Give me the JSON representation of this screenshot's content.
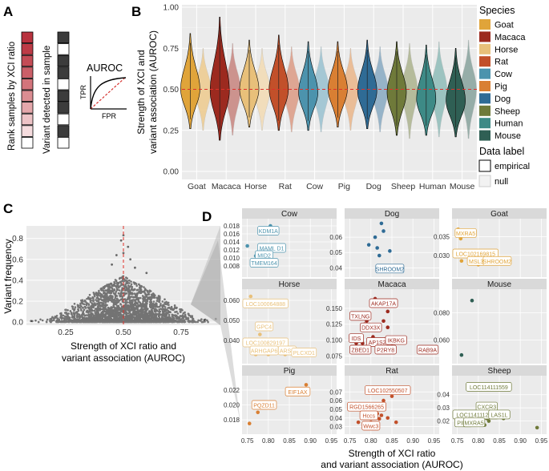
{
  "panels": {
    "a": "A",
    "b": "B",
    "c": "C",
    "d": "D"
  },
  "panel_a": {
    "rank_label": "Rank samples by XCI ratio",
    "variant_label": "Variant detected in sample",
    "auroc_title": "AUROC",
    "tpr": "TPR",
    "fpr": "FPR",
    "rank_colors": [
      "#b8323e",
      "#bd3b46",
      "#c44c56",
      "#cb5f68",
      "#d3747b",
      "#db8d92",
      "#e4a7ab",
      "#edc3c6",
      "#f5dcde",
      "#ffffff"
    ],
    "variant_colors": [
      "#3c3c3c",
      "#ffffff",
      "#3c3c3c",
      "#3c3c3c",
      "#ffffff",
      "#3c3c3c",
      "#3c3c3c",
      "#ffffff",
      "#3c3c3c",
      "#ffffff"
    ]
  },
  "legend": {
    "species_title": "Species",
    "species": [
      {
        "name": "Goat",
        "color": "#e0a43a"
      },
      {
        "name": "Macaca",
        "color": "#9c2a1f"
      },
      {
        "name": "Horse",
        "color": "#e8c07a"
      },
      {
        "name": "Rat",
        "color": "#c2502a"
      },
      {
        "name": "Cow",
        "color": "#4c93ad"
      },
      {
        "name": "Pig",
        "color": "#d97f33"
      },
      {
        "name": "Dog",
        "color": "#2f6b95"
      },
      {
        "name": "Sheep",
        "color": "#6f7a3a"
      },
      {
        "name": "Human",
        "color": "#3d8a86"
      },
      {
        "name": "Mouse",
        "color": "#2f5f54"
      }
    ],
    "data_label_title": "Data label",
    "data_labels": [
      "empirical",
      "null"
    ]
  },
  "chart_data": [
    {
      "type": "violin",
      "panel": "B",
      "ylabel": "Strength of XCI and\nvariant association (AUROC)",
      "ylim": [
        0,
        1
      ],
      "yticks": [
        "0.00",
        "0.25",
        "0.50",
        "0.75",
        "1.00"
      ],
      "categories": [
        "Goat",
        "Macaca",
        "Horse",
        "Rat",
        "Cow",
        "Pig",
        "Dog",
        "Sheep",
        "Human",
        "Mouse"
      ],
      "reference_line": 0.5,
      "series": [
        {
          "name": "empirical",
          "median": [
            0.5,
            0.49,
            0.5,
            0.5,
            0.48,
            0.5,
            0.49,
            0.48,
            0.44,
            0.43
          ],
          "min": [
            0.26,
            0.19,
            0.27,
            0.25,
            0.25,
            0.27,
            0.26,
            0.22,
            0.22,
            0.21
          ],
          "max": [
            0.84,
            0.94,
            0.8,
            0.83,
            0.79,
            0.79,
            0.8,
            0.79,
            0.77,
            0.75
          ]
        },
        {
          "name": "null",
          "median": [
            0.5,
            0.5,
            0.5,
            0.5,
            0.5,
            0.5,
            0.5,
            0.5,
            0.5,
            0.5
          ],
          "min": [
            0.25,
            0.22,
            0.25,
            0.24,
            0.24,
            0.25,
            0.24,
            0.2,
            0.21,
            0.2
          ],
          "max": [
            0.75,
            0.78,
            0.75,
            0.76,
            0.76,
            0.75,
            0.76,
            0.78,
            0.79,
            0.8
          ]
        }
      ]
    },
    {
      "type": "scatter",
      "panel": "C",
      "xlabel": "Strength of XCI ratio and\nvariant association (AUROC)",
      "ylabel": "Variant frequency",
      "xticks": [
        "0.25",
        "0.50",
        "0.75"
      ],
      "yticks": [
        "0.0",
        "0.2",
        "0.4",
        "0.6",
        "0.8"
      ],
      "xlim": [
        0.08,
        0.92
      ],
      "ylim": [
        -0.03,
        0.92
      ],
      "reference_line_x": 0.5
    },
    {
      "type": "scatter",
      "panel": "D",
      "xlabel": "Strength of XCI ratio\nand variant association (AUROC)",
      "xticks": [
        "0.75",
        "0.80",
        "0.85",
        "0.90",
        "0.95"
      ],
      "xlim": [
        0.745,
        0.955
      ],
      "facets": [
        {
          "name": "Cow",
          "color": "#4c93ad",
          "ylim": [
            0.006,
            0.019
          ],
          "yticks": [
            "0.008",
            "0.010",
            "0.012",
            "0.014",
            "0.016",
            "0.018"
          ],
          "points": [
            [
              0.75,
              0.013
            ],
            [
              0.765,
              0.0085
            ],
            [
              0.77,
              0.0105
            ],
            [
              0.77,
              0.0095
            ],
            [
              0.78,
              0.0085
            ],
            [
              0.785,
              0.0115
            ],
            [
              0.79,
              0.0125
            ],
            [
              0.805,
              0.018
            ]
          ],
          "labels": [
            {
              "text": "KDM1A",
              "x": 0.8,
              "y": 0.0168
            },
            {
              "text": "MAML D1",
              "x": 0.808,
              "y": 0.0125
            },
            {
              "text": "MID2",
              "x": 0.79,
              "y": 0.0107
            },
            {
              "text": "TMEM164",
              "x": 0.79,
              "y": 0.0088
            }
          ]
        },
        {
          "name": "Dog",
          "color": "#2f6b95",
          "ylim": [
            0.036,
            0.07
          ],
          "yticks": [
            "0.04",
            "0.05",
            "0.06"
          ],
          "points": [
            [
              0.795,
              0.055
            ],
            [
              0.81,
              0.06
            ],
            [
              0.815,
              0.053
            ],
            [
              0.82,
              0.048
            ],
            [
              0.825,
              0.069
            ],
            [
              0.83,
              0.064
            ],
            [
              0.845,
              0.051
            ],
            [
              0.85,
              0.038
            ]
          ],
          "labels": [
            {
              "text": "SHROOM2",
              "x": 0.845,
              "y": 0.0395
            }
          ]
        },
        {
          "name": "Goat",
          "color": "#e0a43a",
          "ylim": [
            0.025,
            0.039
          ],
          "yticks": [
            "0.030",
            "0.035"
          ],
          "points": [
            [
              0.752,
              0.037
            ],
            [
              0.758,
              0.0345
            ],
            [
              0.76,
              0.0285
            ],
            [
              0.8,
              0.0275
            ],
            [
              0.82,
              0.029
            ],
            [
              0.84,
              0.029
            ],
            [
              0.8,
              0.0295
            ]
          ],
          "labels": [
            {
              "text": "MXRA5",
              "x": 0.77,
              "y": 0.036
            },
            {
              "text": "LOC102169815",
              "x": 0.79,
              "y": 0.0305
            },
            {
              "text": "MSL3",
              "x": 0.795,
              "y": 0.0285
            },
            {
              "text": "SHROOM2",
              "x": 0.845,
              "y": 0.0285
            }
          ]
        },
        {
          "name": "Horse",
          "color": "#e8c07a",
          "ylim": [
            0.03,
            0.064
          ],
          "yticks": [
            "0.040",
            "0.050",
            "0.060"
          ],
          "points": [
            [
              0.758,
              0.062
            ],
            [
              0.765,
              0.038
            ],
            [
              0.77,
              0.033
            ],
            [
              0.775,
              0.036
            ],
            [
              0.78,
              0.043
            ],
            [
              0.8,
              0.033
            ],
            [
              0.82,
              0.034
            ],
            [
              0.84,
              0.033
            ],
            [
              0.85,
              0.035
            ],
            [
              0.86,
              0.034
            ]
          ],
          "labels": [
            {
              "text": "LOC100064888",
              "x": 0.79,
              "y": 0.0585
            },
            {
              "text": "GPC4",
              "x": 0.79,
              "y": 0.047
            },
            {
              "text": "LOC100829197",
              "x": 0.79,
              "y": 0.039
            },
            {
              "text": "ARHGAP6",
              "x": 0.79,
              "y": 0.035
            },
            {
              "text": "ARSE",
              "x": 0.845,
              "y": 0.035
            },
            {
              "text": "PLCXD1",
              "x": 0.885,
              "y": 0.034
            }
          ]
        },
        {
          "name": "Macaca",
          "color": "#9c2a1f",
          "ylim": [
            0.068,
            0.175
          ],
          "yticks": [
            "0.075",
            "0.100",
            "0.125",
            "0.150"
          ],
          "points": [
            [
              0.76,
              0.1
            ],
            [
              0.765,
              0.095
            ],
            [
              0.77,
              0.1
            ],
            [
              0.78,
              0.095
            ],
            [
              0.785,
              0.125
            ],
            [
              0.79,
              0.13
            ],
            [
              0.8,
              0.1
            ],
            [
              0.805,
              0.105
            ],
            [
              0.81,
              0.165
            ],
            [
              0.82,
              0.1
            ],
            [
              0.83,
              0.13
            ],
            [
              0.84,
              0.12
            ],
            [
              0.84,
              0.145
            ],
            [
              0.85,
              0.09
            ],
            [
              0.95,
              0.083
            ]
          ],
          "labels": [
            {
              "text": "AKAP17A",
              "x": 0.83,
              "y": 0.158
            },
            {
              "text": "TXLNG",
              "x": 0.775,
              "y": 0.138
            },
            {
              "text": "DDX3X",
              "x": 0.8,
              "y": 0.12
            },
            {
              "text": "IDS",
              "x": 0.765,
              "y": 0.103
            },
            {
              "text": "AP1S2",
              "x": 0.815,
              "y": 0.097
            },
            {
              "text": "IKBKG",
              "x": 0.86,
              "y": 0.1
            },
            {
              "text": "ZBED1",
              "x": 0.775,
              "y": 0.085
            },
            {
              "text": "P2RY8",
              "x": 0.835,
              "y": 0.085
            },
            {
              "text": "RAB9A",
              "x": 0.935,
              "y": 0.085
            }
          ]
        },
        {
          "name": "Mouse",
          "color": "#2f5f54",
          "ylim": [
            0.045,
            0.095
          ],
          "yticks": [
            "0.060",
            "0.080"
          ],
          "points": [
            [
              0.76,
              0.049
            ],
            [
              0.785,
              0.089
            ]
          ],
          "labels": []
        },
        {
          "name": "Pig",
          "color": "#d97f33",
          "ylim": [
            0.0165,
            0.0235
          ],
          "yticks": [
            "0.018",
            "0.020",
            "0.022"
          ],
          "points": [
            [
              0.755,
              0.0175
            ],
            [
              0.775,
              0.019
            ],
            [
              0.89,
              0.0227
            ]
          ],
          "labels": [
            {
              "text": "EIF1AX",
              "x": 0.87,
              "y": 0.0218
            },
            {
              "text": "PQZD11",
              "x": 0.79,
              "y": 0.02
            }
          ]
        },
        {
          "name": "Rat",
          "color": "#c2502a",
          "ylim": [
            0.025,
            0.085
          ],
          "yticks": [
            "0.03",
            "0.04",
            "0.05",
            "0.06",
            "0.07"
          ],
          "points": [
            [
              0.755,
              0.055
            ],
            [
              0.765,
              0.05
            ],
            [
              0.77,
              0.035
            ],
            [
              0.78,
              0.045
            ],
            [
              0.79,
              0.04
            ],
            [
              0.795,
              0.03
            ],
            [
              0.8,
              0.035
            ],
            [
              0.81,
              0.041
            ],
            [
              0.815,
              0.045
            ],
            [
              0.82,
              0.039
            ],
            [
              0.825,
              0.043
            ],
            [
              0.83,
              0.06
            ],
            [
              0.84,
              0.04
            ],
            [
              0.85,
              0.065
            ],
            [
              0.86,
              0.035
            ]
          ],
          "labels": [
            {
              "text": "LOC102550507",
              "x": 0.84,
              "y": 0.072
            },
            {
              "text": "RGD1566265",
              "x": 0.79,
              "y": 0.053
            },
            {
              "text": "Hccs",
              "x": 0.795,
              "y": 0.043
            },
            {
              "text": "Wwc3",
              "x": 0.8,
              "y": 0.031
            }
          ]
        },
        {
          "name": "Sheep",
          "color": "#6f7a3a",
          "ylim": [
            0.0125,
            0.052
          ],
          "yticks": [
            "0.02",
            "0.03",
            "0.04"
          ],
          "points": [
            [
              0.76,
              0.02
            ],
            [
              0.77,
              0.017
            ],
            [
              0.78,
              0.019
            ],
            [
              0.785,
              0.02
            ],
            [
              0.79,
              0.022
            ],
            [
              0.795,
              0.018
            ],
            [
              0.8,
              0.021
            ],
            [
              0.805,
              0.019
            ],
            [
              0.81,
              0.024
            ],
            [
              0.815,
              0.017
            ],
            [
              0.82,
              0.022
            ],
            [
              0.82,
              0.031
            ],
            [
              0.825,
              0.02
            ],
            [
              0.83,
              0.027
            ],
            [
              0.84,
              0.023
            ],
            [
              0.86,
              0.022
            ],
            [
              0.8,
              0.048
            ],
            [
              0.94,
              0.015
            ]
          ],
          "labels": [
            {
              "text": "LOC114111559",
              "x": 0.825,
              "y": 0.046
            },
            {
              "text": "CXCR3",
              "x": 0.82,
              "y": 0.031
            },
            {
              "text": "LOC114111250",
              "x": 0.78,
              "y": 0.025
            },
            {
              "text": "LAS1L",
              "x": 0.85,
              "y": 0.025
            },
            {
              "text": "PIM2",
              "x": 0.765,
              "y": 0.019
            },
            {
              "text": "MXRA5",
              "x": 0.79,
              "y": 0.019
            }
          ]
        }
      ]
    }
  ]
}
